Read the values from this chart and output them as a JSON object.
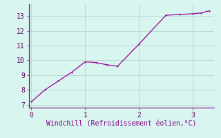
{
  "x": [
    0,
    0.25,
    0.5,
    0.75,
    1.0,
    1.2,
    1.4,
    1.6,
    2.0,
    2.5,
    2.75,
    3.0,
    3.15,
    3.3
  ],
  "y": [
    7.2,
    8.0,
    8.6,
    9.2,
    9.9,
    9.85,
    9.7,
    9.6,
    11.1,
    13.05,
    13.1,
    13.15,
    13.2,
    13.35
  ],
  "line_color": "#990099",
  "marker_color": "#990099",
  "bg_color": "#d9f5f0",
  "grid_color": "#b8d8d0",
  "axis_color": "#800080",
  "xlabel": "Windchill (Refroidissement éolien,°C)",
  "xlabel_color": "#880088",
  "tick_color": "#660066",
  "xlim": [
    -0.05,
    3.4
  ],
  "ylim": [
    6.8,
    13.8
  ],
  "xticks": [
    0,
    1,
    2,
    3
  ],
  "yticks": [
    7,
    8,
    9,
    10,
    11,
    12,
    13
  ]
}
